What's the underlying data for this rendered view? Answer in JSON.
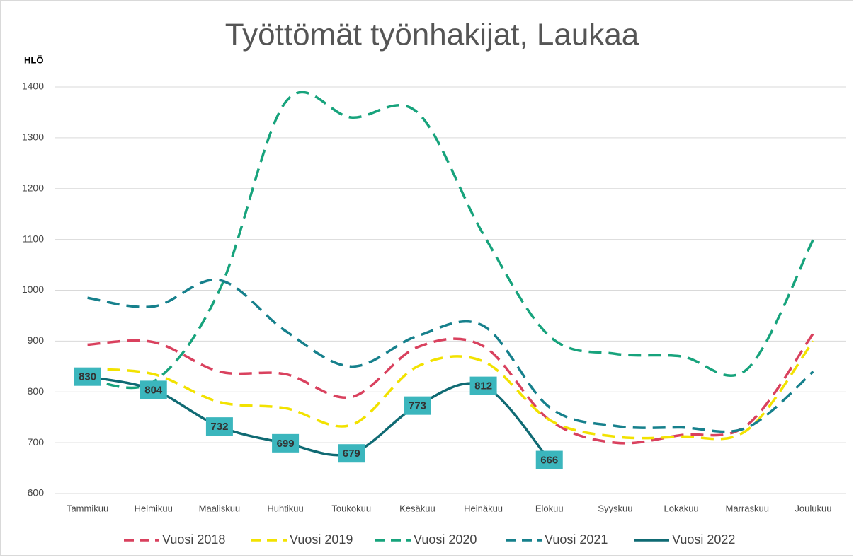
{
  "chart_data": {
    "type": "line",
    "title": "Työttömät työnhakijat, Laukaa",
    "y_label": "HLÖ",
    "categories": [
      "Tammikuu",
      "Helmikuu",
      "Maaliskuu",
      "Huhtikuu",
      "Toukokuu",
      "Kesäkuu",
      "Heinäkuu",
      "Elokuu",
      "Syyskuu",
      "Lokakuu",
      "Marraskuu",
      "Joulukuu"
    ],
    "series": [
      {
        "name": "Vuosi 2018",
        "color": "#d9415e",
        "dashed": true,
        "values": [
          893,
          898,
          840,
          835,
          790,
          888,
          890,
          745,
          700,
          715,
          735,
          915
        ]
      },
      {
        "name": "Vuosi 2019",
        "color": "#f2e200",
        "dashed": true,
        "values": [
          845,
          835,
          780,
          768,
          735,
          850,
          860,
          745,
          712,
          712,
          725,
          900
        ]
      },
      {
        "name": "Vuosi 2020",
        "color": "#17a37c",
        "dashed": true,
        "values": [
          825,
          820,
          1000,
          1370,
          1340,
          1350,
          1110,
          910,
          875,
          870,
          845,
          1100
        ]
      },
      {
        "name": "Vuosi 2021",
        "color": "#16808c",
        "dashed": true,
        "values": [
          985,
          968,
          1020,
          920,
          850,
          910,
          930,
          770,
          733,
          730,
          730,
          840
        ]
      },
      {
        "name": "Vuosi 2022",
        "color": "#0f6a73",
        "dashed": false,
        "data_labels": true,
        "values": [
          830,
          804,
          732,
          699,
          679,
          773,
          812,
          666,
          null,
          null,
          null,
          null
        ]
      }
    ],
    "ylim": [
      600,
      1400
    ],
    "yticks": [
      600,
      700,
      800,
      900,
      1000,
      1100,
      1200,
      1300,
      1400
    ],
    "grid": true,
    "legend": "bottom"
  }
}
